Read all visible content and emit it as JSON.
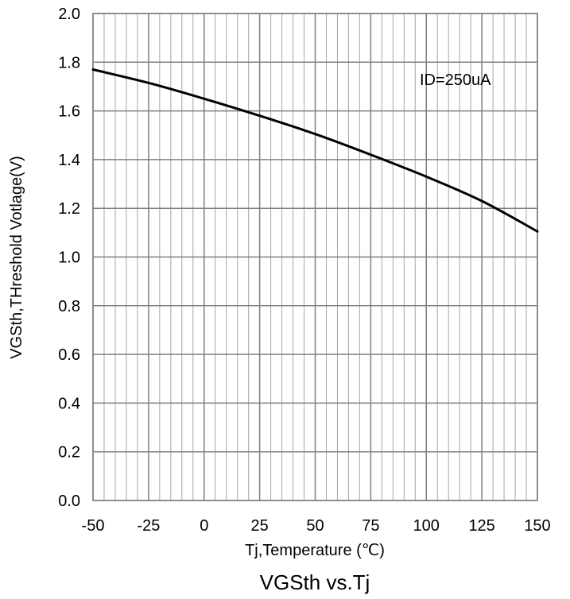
{
  "chart_data": {
    "type": "line",
    "title": "VGSth vs.Tj",
    "xlabel": "Tj,Temperature (℃)",
    "ylabel": "VGSth,THreshold Votlage(V)",
    "xlim": [
      -50,
      150
    ],
    "ylim": [
      0.0,
      2.0
    ],
    "x_ticks": [
      "-50",
      "-25",
      "0",
      "25",
      "50",
      "75",
      "100",
      "125",
      "150"
    ],
    "y_ticks": [
      "0.0",
      "0.2",
      "0.4",
      "0.6",
      "0.8",
      "1.0",
      "1.2",
      "1.4",
      "1.6",
      "1.8",
      "2.0"
    ],
    "x_tick_values": [
      -50,
      -25,
      0,
      25,
      50,
      75,
      100,
      125,
      150
    ],
    "y_tick_values": [
      0.0,
      0.2,
      0.4,
      0.6,
      0.8,
      1.0,
      1.2,
      1.4,
      1.6,
      1.8,
      2.0
    ],
    "grid": true,
    "annotation": "ID=250uA",
    "series": [
      {
        "x": [
          -50,
          -25,
          0,
          25,
          50,
          75,
          100,
          125,
          150
        ],
        "y": [
          1.77,
          1.715,
          1.65,
          1.58,
          1.505,
          1.42,
          1.33,
          1.23,
          1.105
        ]
      }
    ]
  }
}
